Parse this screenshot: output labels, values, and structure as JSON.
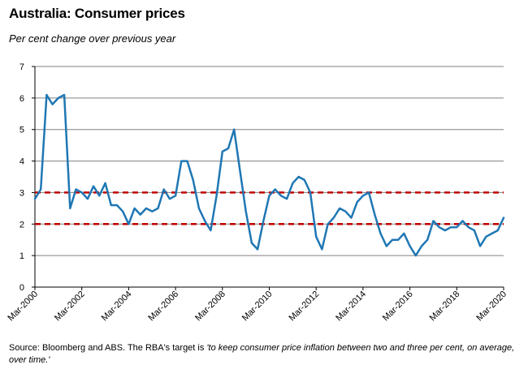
{
  "title": "Australia: Consumer prices",
  "subtitle": "Per cent change over previous year",
  "source": {
    "text": "Source: Bloomberg and ABS.  The RBA's target is ",
    "quote": "'to keep consumer price inflation between two and three per cent, on average, over time.'"
  },
  "colors": {
    "line": "#1f77b4",
    "target_band": "#c00000",
    "grid": "#808080"
  },
  "chart_data": {
    "type": "line",
    "title": "Australia: Consumer prices",
    "ylabel": "Per cent change over previous year",
    "xlabel": "",
    "ylim": [
      0,
      7
    ],
    "yticks": [
      0,
      1,
      2,
      3,
      4,
      5,
      6,
      7
    ],
    "grid": true,
    "x_tick_labels": [
      "Mar-2000",
      "Mar-2002",
      "Mar-2004",
      "Mar-2006",
      "Mar-2008",
      "Mar-2010",
      "Mar-2012",
      "Mar-2014",
      "Mar-2016",
      "Mar-2018",
      "Mar-2020"
    ],
    "x_start": "Mar-2000",
    "x_end": "Mar-2020",
    "frequency": "quarterly",
    "series": [
      {
        "name": "CPI, per cent change over previous year",
        "values": [
          2.8,
          3.1,
          6.1,
          5.8,
          6.0,
          6.1,
          2.5,
          3.1,
          3.0,
          2.8,
          3.2,
          2.9,
          3.3,
          2.6,
          2.6,
          2.4,
          2.0,
          2.5,
          2.3,
          2.5,
          2.4,
          2.5,
          3.1,
          2.8,
          2.9,
          4.0,
          4.0,
          3.4,
          2.5,
          2.1,
          1.8,
          2.9,
          4.3,
          4.4,
          5.0,
          3.7,
          2.4,
          1.4,
          1.2,
          2.1,
          2.9,
          3.1,
          2.9,
          2.8,
          3.3,
          3.5,
          3.4,
          3.0,
          1.6,
          1.2,
          2.0,
          2.2,
          2.5,
          2.4,
          2.2,
          2.7,
          2.9,
          3.0,
          2.3,
          1.7,
          1.3,
          1.5,
          1.5,
          1.7,
          1.3,
          1.0,
          1.3,
          1.5,
          2.1,
          1.9,
          1.8,
          1.9,
          1.9,
          2.1,
          1.9,
          1.8,
          1.3,
          1.6,
          1.7,
          1.8,
          2.2
        ]
      }
    ],
    "target_band": {
      "lower": 2,
      "upper": 3,
      "style": "dashed"
    }
  }
}
